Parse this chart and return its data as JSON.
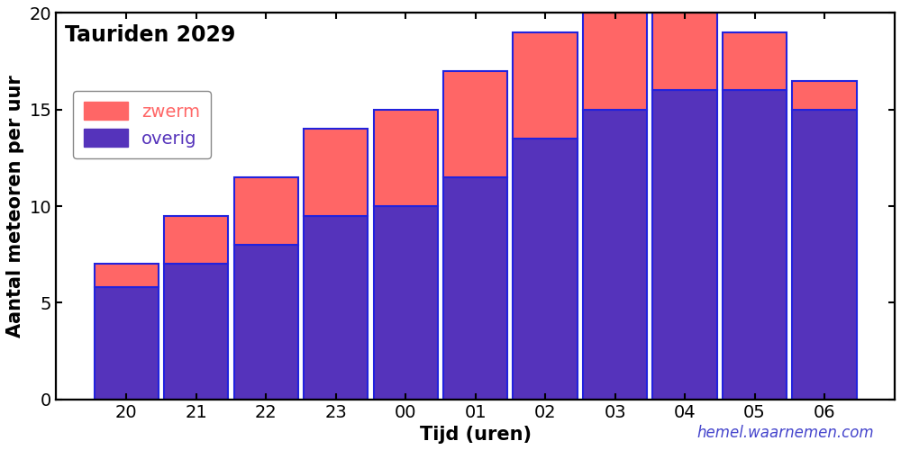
{
  "hours": [
    "20",
    "21",
    "22",
    "23",
    "00",
    "01",
    "02",
    "03",
    "04",
    "05",
    "06"
  ],
  "overig": [
    5.8,
    7.0,
    8.0,
    9.5,
    10.0,
    11.5,
    13.5,
    15.0,
    16.0,
    16.0,
    15.0
  ],
  "zwerm": [
    1.2,
    2.5,
    3.5,
    4.5,
    5.0,
    5.5,
    5.5,
    5.0,
    4.0,
    3.0,
    1.5
  ],
  "color_zwerm": "#ff6666",
  "color_overig": "#5533bb",
  "bar_edge_color": "#2222dd",
  "title": "Tauriden 2029",
  "ylabel": "Aantal meteoren per uur",
  "xlabel": "Tijd (uren)",
  "ylim": [
    0,
    20
  ],
  "bg_color": "#ffffff",
  "watermark": "hemel.waarnemen.com",
  "watermark_color": "#4444cc",
  "title_fontsize": 17,
  "label_fontsize": 15,
  "tick_fontsize": 14,
  "legend_fontsize": 14
}
